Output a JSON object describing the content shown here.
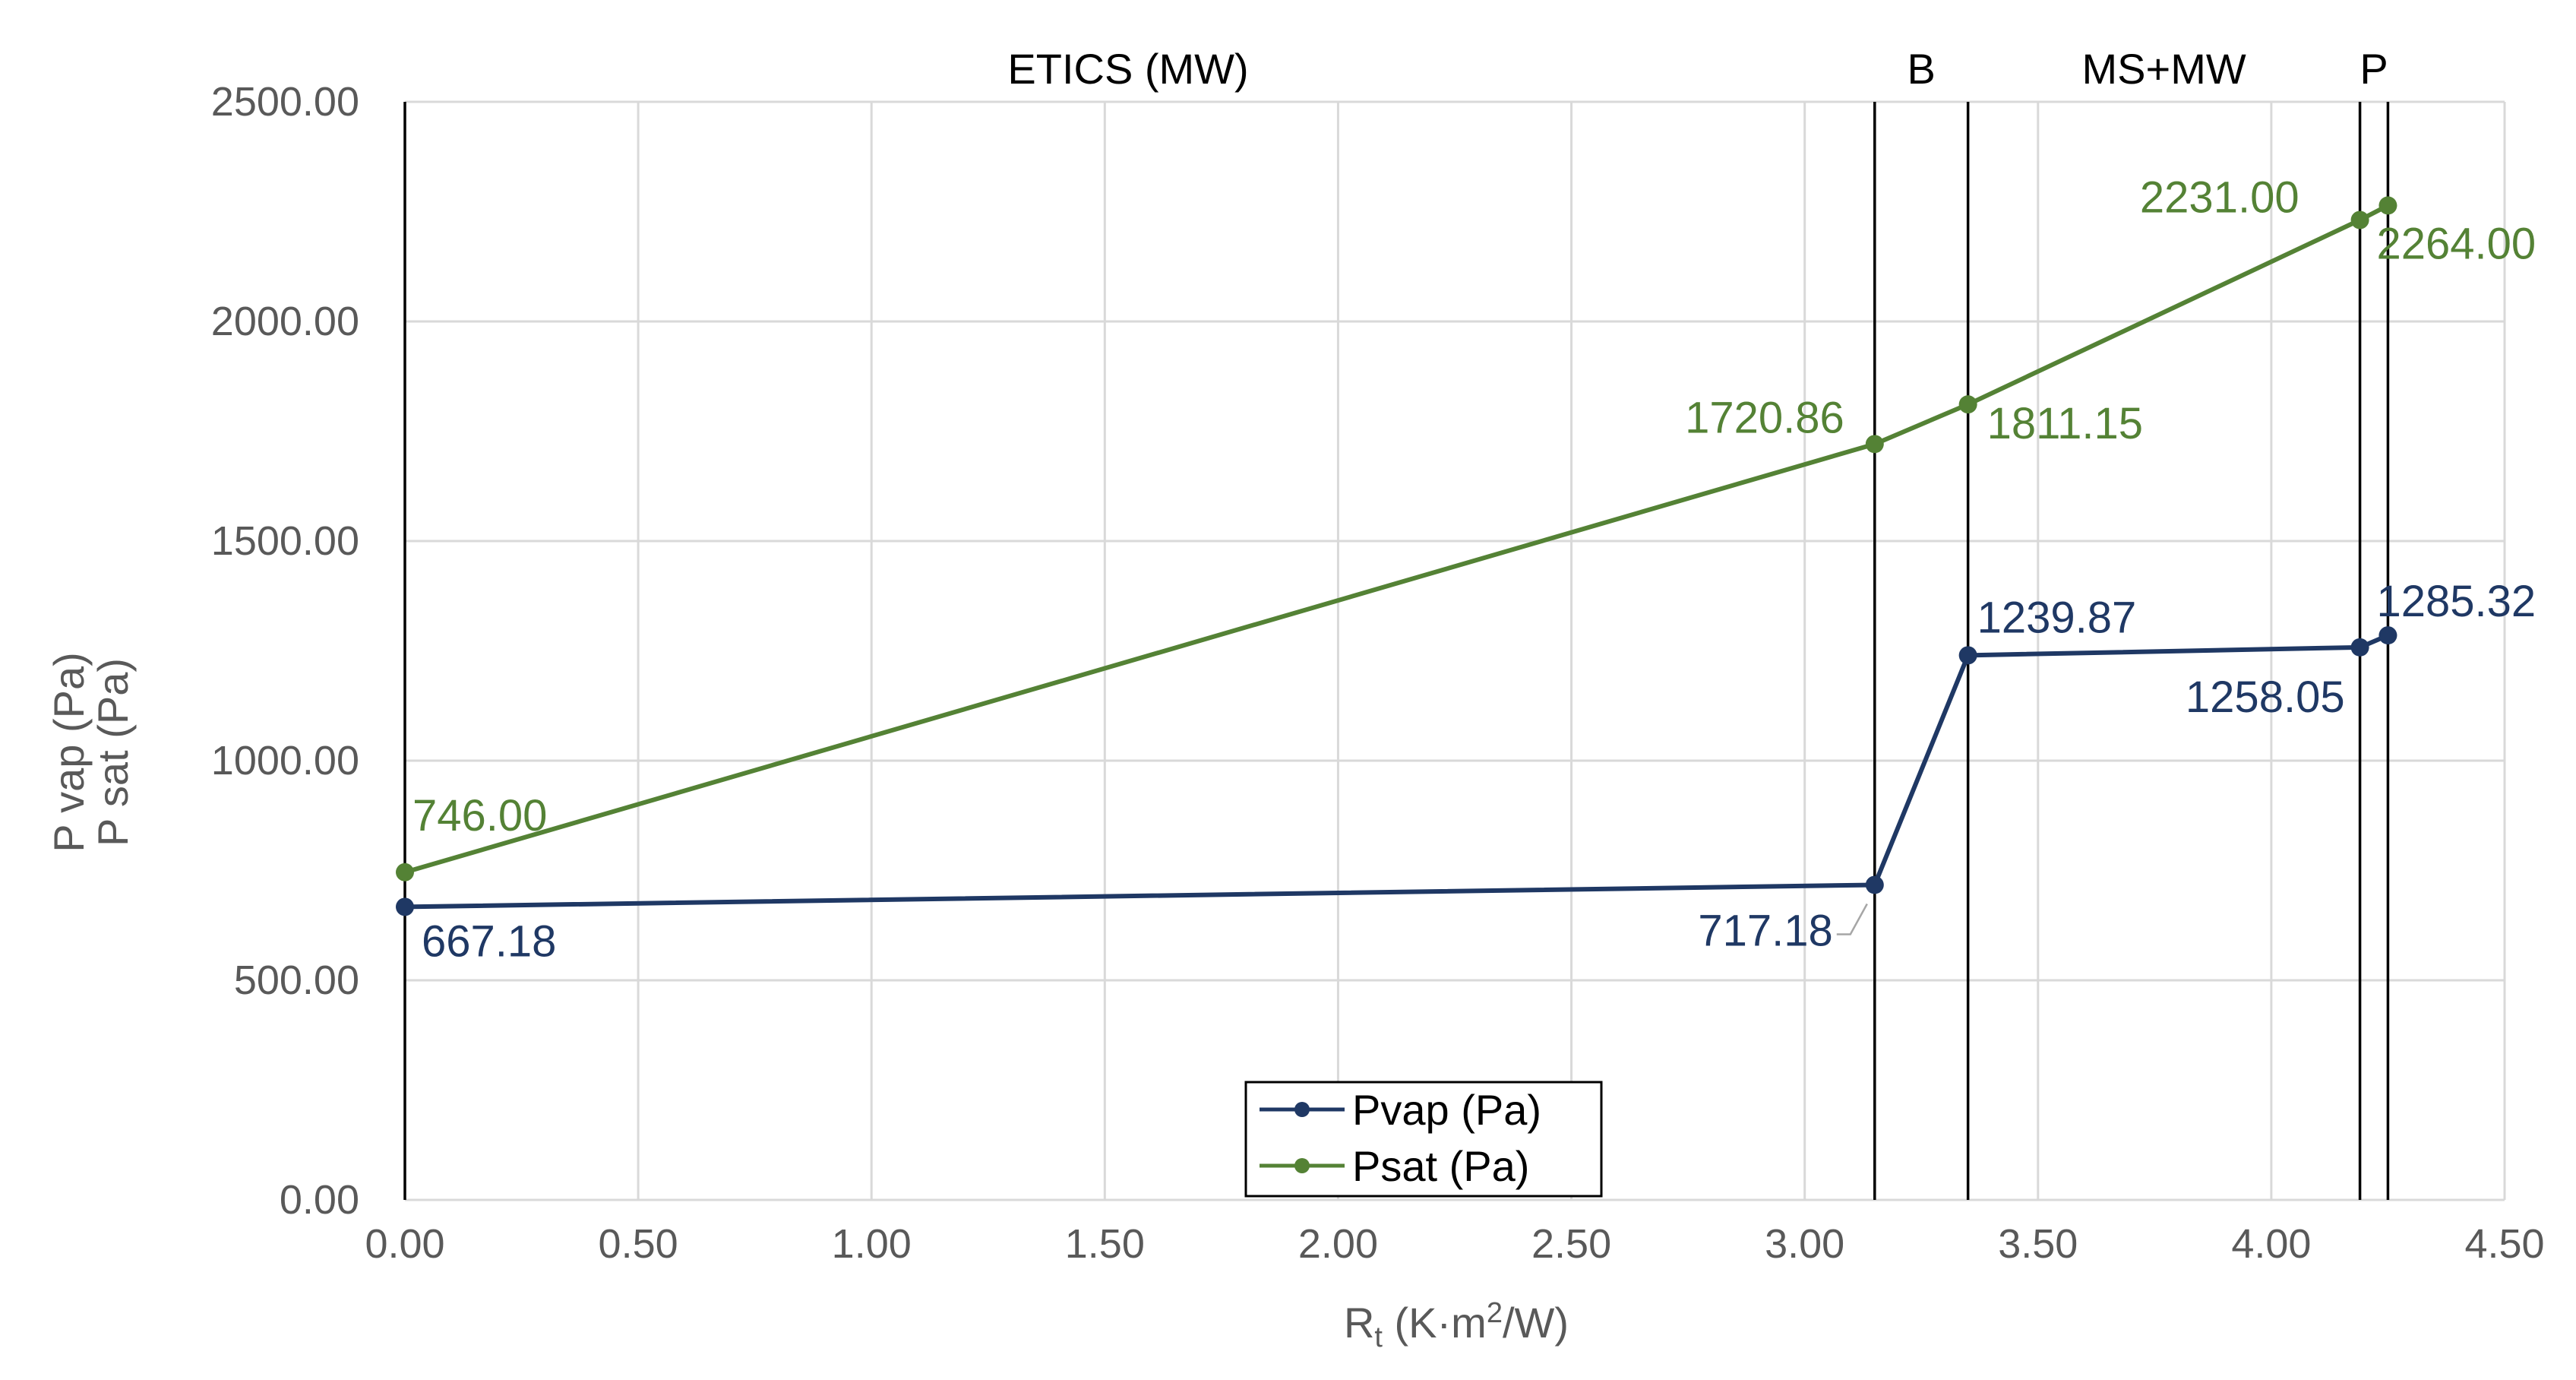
{
  "chart_data": {
    "type": "line",
    "title": "",
    "xlabel_base": "R",
    "xlabel_sub": "t",
    "xlabel_rest": " (K·m",
    "xlabel_sup": "2",
    "xlabel_end": "/W)",
    "ylabel_lines": [
      "P vap (Pa)",
      "P sat (Pa)"
    ],
    "xlim": [
      0,
      4.5
    ],
    "ylim": [
      0,
      2500
    ],
    "x_ticks": [
      "0.00",
      "0.50",
      "1.00",
      "1.50",
      "2.00",
      "2.50",
      "3.00",
      "3.50",
      "4.00",
      "4.50"
    ],
    "y_ticks": [
      "0.00",
      "500.00",
      "1000.00",
      "1500.00",
      "2000.00",
      "2500.00"
    ],
    "grid": true,
    "layer_boundaries": [
      0,
      3.15,
      3.35,
      4.19,
      4.25
    ],
    "layer_labels": [
      {
        "text": "ETICS (MW)",
        "x": 1.55
      },
      {
        "text": "B",
        "x": 3.25
      },
      {
        "text": "MS+MW",
        "x": 3.77
      },
      {
        "text": "P",
        "x": 4.22
      }
    ],
    "series": [
      {
        "name": "Pvap (Pa)",
        "color": "#1f3864",
        "x": [
          0,
          3.15,
          3.35,
          4.19,
          4.25
        ],
        "y": [
          667.18,
          717.18,
          1239.87,
          1258.05,
          1285.32
        ],
        "labels": [
          "667.18",
          "717.18",
          "1239.87",
          "1258.05",
          "1285.32"
        ]
      },
      {
        "name": "Psat (Pa)",
        "color": "#548235",
        "x": [
          0,
          3.15,
          3.35,
          4.19,
          4.25
        ],
        "y": [
          746.0,
          1720.86,
          1811.15,
          2231.0,
          2264.0
        ],
        "labels": [
          "746.00",
          "1720.86",
          "1811.15",
          "2231.00",
          "2264.00"
        ]
      }
    ],
    "legend": {
      "placement": "bottom-center",
      "entries": [
        "Pvap (Pa)",
        "Psat (Pa)"
      ]
    }
  }
}
